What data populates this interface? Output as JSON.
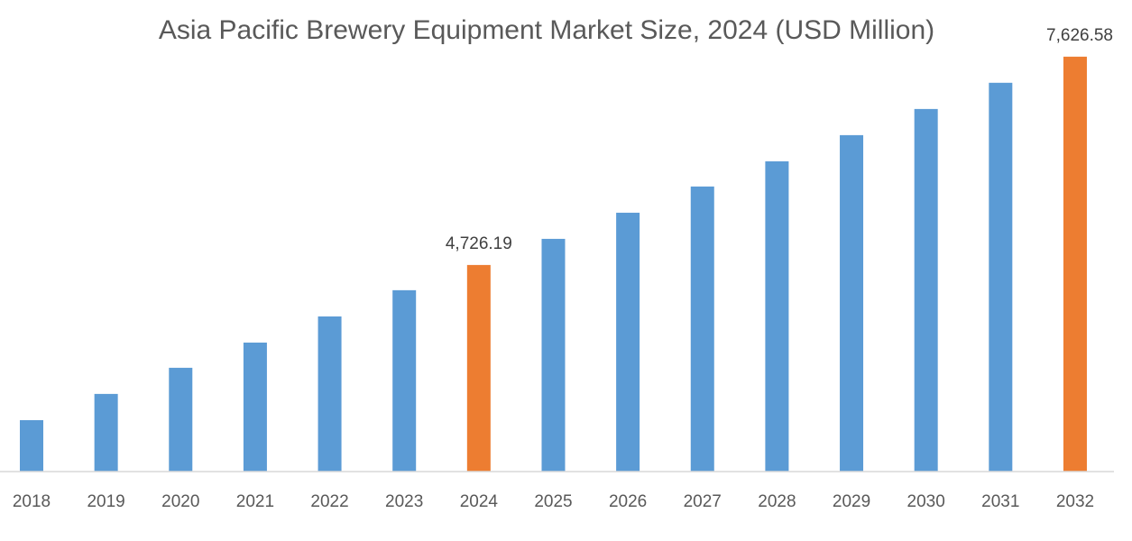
{
  "chart_data": {
    "type": "bar",
    "title": "Asia Pacific Brewery Equipment Market Size, 2024 (USD Million)",
    "xlabel": "",
    "ylabel": "",
    "categories": [
      "2018",
      "2019",
      "2020",
      "2021",
      "2022",
      "2023",
      "2024",
      "2025",
      "2026",
      "2027",
      "2028",
      "2029",
      "2030",
      "2031",
      "2032"
    ],
    "values": [
      2566,
      2931,
      3295,
      3646,
      4010,
      4375,
      4726.19,
      5090,
      5454,
      5819,
      6170,
      6534,
      6898,
      7263,
      7626.58
    ],
    "data_labels": {
      "2024": "4,726.19",
      "2032": "7,626.58"
    },
    "highlight": [
      "2024",
      "2032"
    ],
    "ylim": [
      1850,
      7700
    ],
    "grid": false,
    "y_axis_visible": false,
    "colors": {
      "bar": "#5B9BD5",
      "highlight": "#ED7D31",
      "axis": "#D9D9D9"
    }
  }
}
